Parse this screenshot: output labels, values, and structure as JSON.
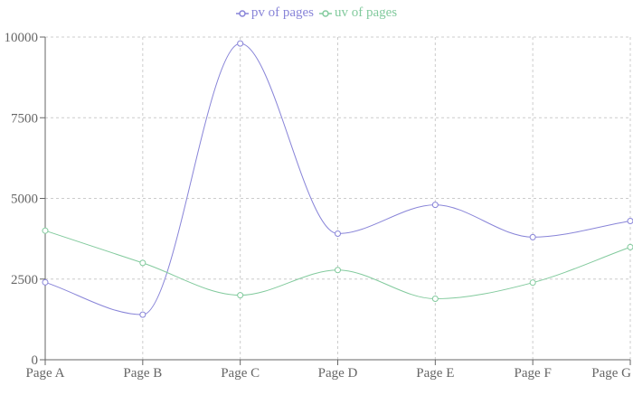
{
  "chart_data": {
    "type": "line",
    "categories": [
      "Page A",
      "Page B",
      "Page C",
      "Page D",
      "Page E",
      "Page F",
      "Page G"
    ],
    "series": [
      {
        "name": "pv of pages",
        "color": "#8884d8",
        "values": [
          2400,
          1398,
          9800,
          3908,
          4800,
          3800,
          4300
        ]
      },
      {
        "name": "uv of pages",
        "color": "#82ca9d",
        "values": [
          4000,
          3000,
          2000,
          2780,
          1890,
          2390,
          3490
        ]
      }
    ],
    "yticks": [
      0,
      2500,
      5000,
      7500,
      10000
    ],
    "ylim": [
      0,
      10000
    ],
    "grid": true,
    "grid_style": "dashed",
    "legend_position": "top-center",
    "curve": "monotone",
    "title": "",
    "xlabel": "",
    "ylabel": ""
  }
}
